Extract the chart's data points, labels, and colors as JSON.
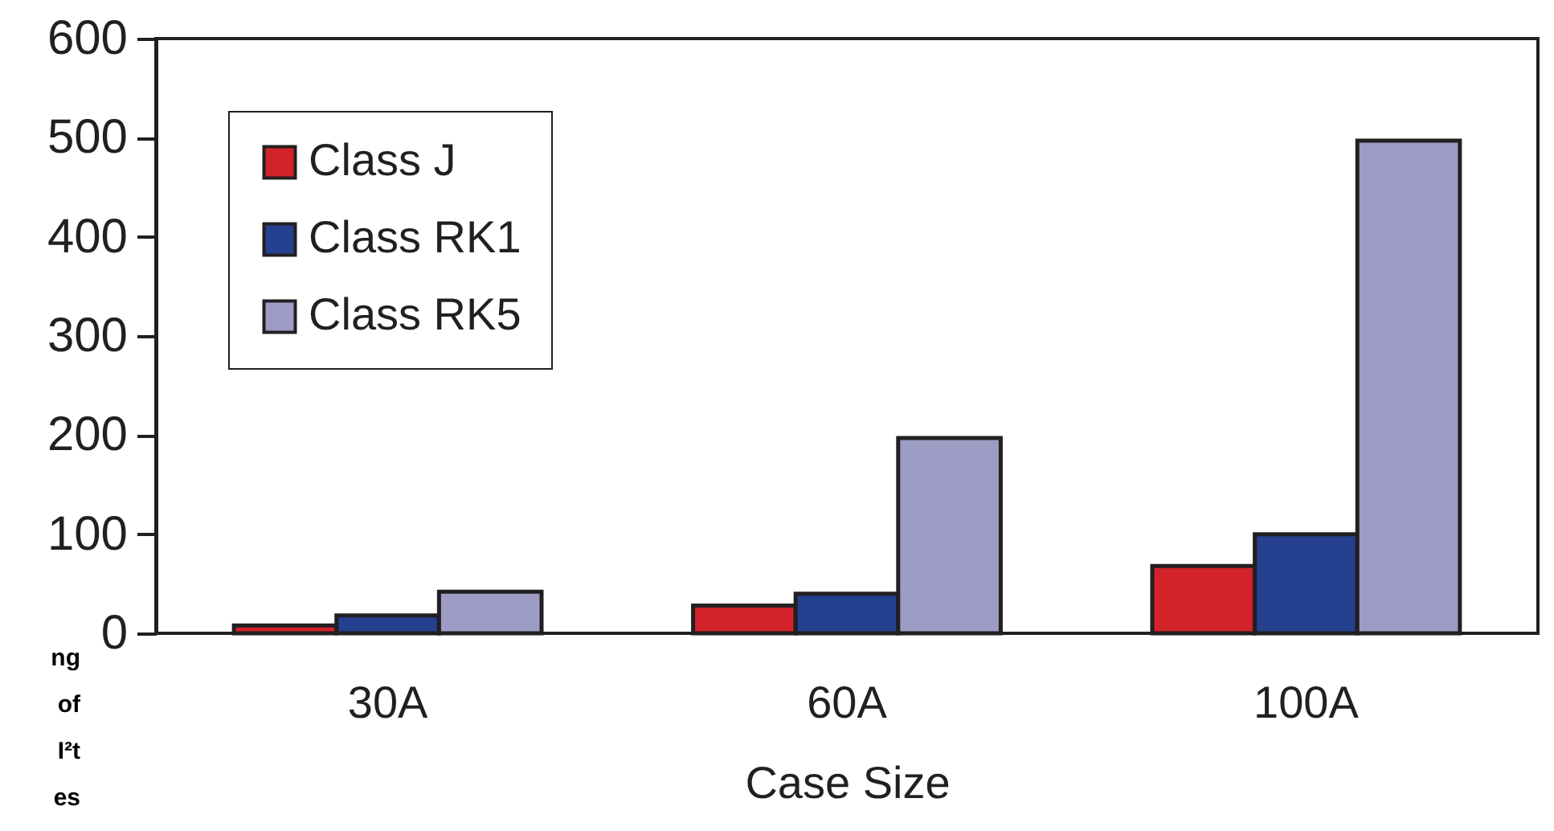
{
  "chart_data": {
    "type": "bar",
    "xlabel": "Case Size",
    "categories": [
      "30A",
      "60A",
      "100A"
    ],
    "series": [
      {
        "name": "Class J",
        "color": "#d2232a",
        "values": [
          8,
          28,
          68
        ]
      },
      {
        "name": "Class RK1",
        "color": "#24408e",
        "values": [
          18,
          40,
          100
        ]
      },
      {
        "name": "Class RK5",
        "color": "#9c9cc4",
        "values": [
          42,
          197,
          497
        ]
      }
    ],
    "ylim": [
      0,
      600
    ],
    "yticks": [
      0,
      100,
      200,
      300,
      400,
      500,
      600
    ],
    "grid": false,
    "legend": "top left",
    "annotations": [
      "ng\nof\nI²t\nes"
    ]
  }
}
